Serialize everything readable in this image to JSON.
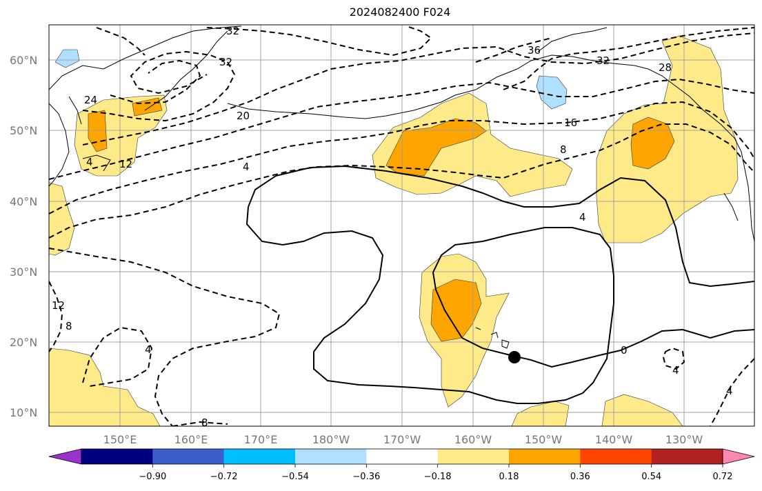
{
  "title": "2024082400 F024",
  "latitude_labels": [
    "60°N",
    "50°N",
    "40°N",
    "30°N",
    "20°N",
    "10°N"
  ],
  "longitude_labels": [
    "150°E",
    "160°E",
    "170°E",
    "180°W",
    "170°W",
    "160°W",
    "150°W",
    "140°W",
    "130°W"
  ],
  "contour_labels": [
    "32",
    "32",
    "36",
    "32",
    "28",
    "24",
    "20",
    "16",
    "12",
    "8",
    "4",
    "4",
    "0",
    "4",
    "8",
    "12",
    "8",
    "4",
    "4",
    "4"
  ],
  "colorbar": {
    "tick_labels": [
      "−0.90",
      "−0.72",
      "−0.54",
      "−0.36",
      "−0.18",
      "0.18",
      "0.36",
      "0.54",
      "0.72",
      "0.90"
    ],
    "colors": [
      "#9933cc",
      "#000080",
      "#3a5fcd",
      "#00bfff",
      "#b0e0ff",
      "#ffffff",
      "#ffea8a",
      "#ffa500",
      "#ff4500",
      "#b22222",
      "#ff88b0"
    ]
  },
  "marker": {
    "name": "black-dot-marker"
  }
}
